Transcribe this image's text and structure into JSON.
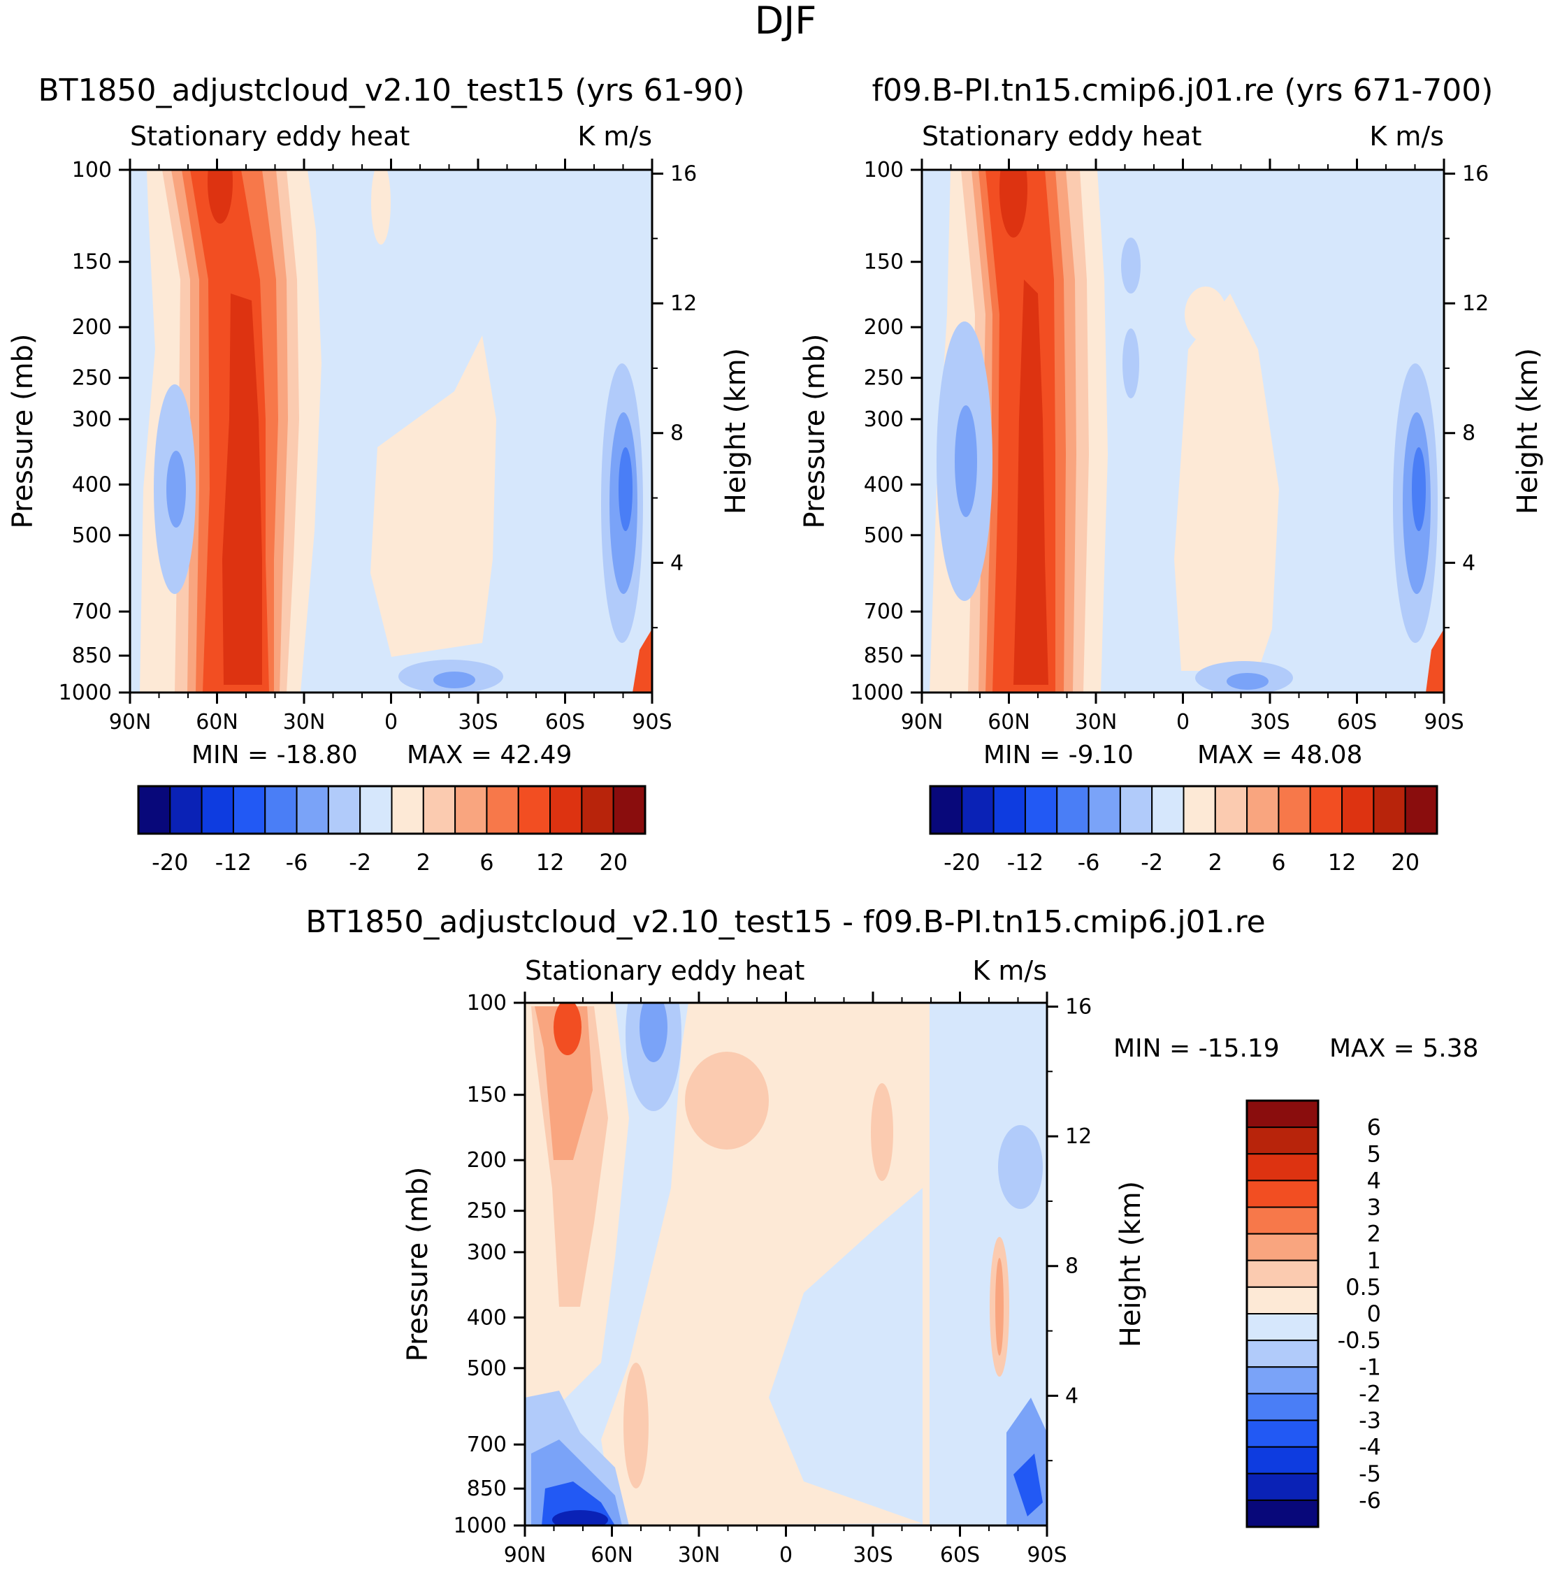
{
  "suptitle": "DJF",
  "chart_data": [
    {
      "type": "heatmap",
      "title": "BT1850_adjustcloud_v2.10_test15 (yrs 61-90)",
      "subtitle_left": "Stationary eddy heat",
      "subtitle_right": "K m/s",
      "xlabel": "",
      "ylabel": "Pressure (mb)",
      "ylabel_right": "Height (km)",
      "x_ticks": [
        "90N",
        "60N",
        "30N",
        "0",
        "30S",
        "60S",
        "90S"
      ],
      "y_ticks": [
        "100",
        "150",
        "200",
        "250",
        "300",
        "400",
        "500",
        "700",
        "850",
        "1000"
      ],
      "y_ticks_right": [
        "16",
        "12",
        "8",
        "4"
      ],
      "xlim": [
        90,
        -90
      ],
      "ylim": [
        1000,
        100
      ],
      "min_label": "MIN = -18.80",
      "max_label": "MAX = 42.49",
      "min": -18.8,
      "max": 42.49,
      "colorbar_orientation": "horizontal",
      "colorbar_labels": [
        "-20",
        "-12",
        "-6",
        "-2",
        "2",
        "6",
        "12",
        "20"
      ]
    },
    {
      "type": "heatmap",
      "title": "f09.B-PI.tn15.cmip6.j01.re (yrs 671-700)",
      "subtitle_left": "Stationary eddy heat",
      "subtitle_right": "K m/s",
      "xlabel": "",
      "ylabel": "Pressure (mb)",
      "ylabel_right": "Height (km)",
      "x_ticks": [
        "90N",
        "60N",
        "30N",
        "0",
        "30S",
        "60S",
        "90S"
      ],
      "y_ticks": [
        "100",
        "150",
        "200",
        "250",
        "300",
        "400",
        "500",
        "700",
        "850",
        "1000"
      ],
      "y_ticks_right": [
        "16",
        "12",
        "8",
        "4"
      ],
      "xlim": [
        90,
        -90
      ],
      "ylim": [
        1000,
        100
      ],
      "min_label": "MIN = -9.10",
      "max_label": "MAX = 48.08",
      "min": -9.1,
      "max": 48.08,
      "colorbar_orientation": "horizontal",
      "colorbar_labels": [
        "-20",
        "-12",
        "-6",
        "-2",
        "2",
        "6",
        "12",
        "20"
      ]
    },
    {
      "type": "heatmap",
      "title": "BT1850_adjustcloud_v2.10_test15 - f09.B-PI.tn15.cmip6.j01.re",
      "subtitle_left": "Stationary eddy heat",
      "subtitle_right": "K m/s",
      "xlabel": "",
      "ylabel": "Pressure (mb)",
      "ylabel_right": "Height (km)",
      "x_ticks": [
        "90N",
        "60N",
        "30N",
        "0",
        "30S",
        "60S",
        "90S"
      ],
      "y_ticks": [
        "100",
        "150",
        "200",
        "250",
        "300",
        "400",
        "500",
        "700",
        "850",
        "1000"
      ],
      "y_ticks_right": [
        "16",
        "12",
        "8",
        "4"
      ],
      "xlim": [
        90,
        -90
      ],
      "ylim": [
        1000,
        100
      ],
      "min_label": "MIN = -15.19",
      "max_label": "MAX = 5.38",
      "min": -15.19,
      "max": 5.38,
      "colorbar_orientation": "vertical",
      "colorbar_labels": [
        "6",
        "5",
        "4",
        "3",
        "2",
        "1",
        "0.5",
        "0",
        "-0.5",
        "-1",
        "-2",
        "-3",
        "-4",
        "-5",
        "-6"
      ]
    }
  ],
  "palette": [
    "#08087a",
    "#0a22b6",
    "#0e3ce0",
    "#2259f4",
    "#4a7ef6",
    "#7aa3f8",
    "#b1cbfa",
    "#d6e7fc",
    "#fde9d6",
    "#fbcbb0",
    "#f9a57f",
    "#f7784a",
    "#f24e22",
    "#dd3311",
    "#b8240b",
    "#8a0d0d"
  ]
}
